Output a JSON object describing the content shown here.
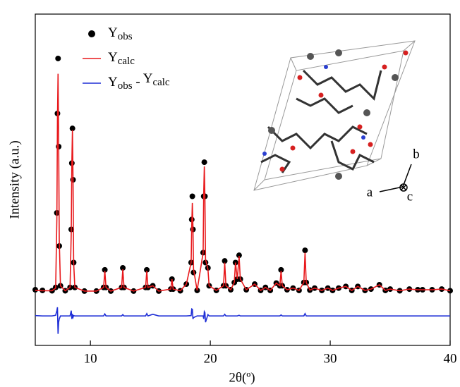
{
  "chart_data": {
    "type": "line",
    "x_label": "2θ(º)",
    "y_label": "Intensity (a.u.)",
    "xlim": [
      5.4,
      40
    ],
    "xticks": [
      10,
      20,
      30,
      40
    ],
    "ylim": [
      0,
      100
    ],
    "legend": "upper left",
    "inset_labels": [
      "a",
      "b",
      "c"
    ],
    "x": [
      5.4,
      6.0,
      6.8,
      7.1,
      7.2,
      7.25,
      7.3,
      7.35,
      7.4,
      7.5,
      7.9,
      8.3,
      8.4,
      8.45,
      8.5,
      8.55,
      8.6,
      8.7,
      9.5,
      10.5,
      11.1,
      11.2,
      11.3,
      11.7,
      12.6,
      12.7,
      12.8,
      13.6,
      14.6,
      14.7,
      14.8,
      15.2,
      15.7,
      16.7,
      16.8,
      16.9,
      17.5,
      18.0,
      18.4,
      18.45,
      18.5,
      18.55,
      18.6,
      18.9,
      19.4,
      19.45,
      19.5,
      19.55,
      19.6,
      19.8,
      19.9,
      20.5,
      21.1,
      21.2,
      21.3,
      21.7,
      22.0,
      22.1,
      22.25,
      22.4,
      22.5,
      23.0,
      23.7,
      24.2,
      24.6,
      25.0,
      25.5,
      25.8,
      25.9,
      26.0,
      26.4,
      26.9,
      27.4,
      27.8,
      27.9,
      28.0,
      28.3,
      28.7,
      29.3,
      29.8,
      30.2,
      30.7,
      31.3,
      31.8,
      32.3,
      32.9,
      33.4,
      34.1,
      34.6,
      35.0,
      35.8,
      36.6,
      37.3,
      37.7,
      38.5,
      39.3,
      40
    ],
    "series": [
      {
        "name": "Yobs",
        "color": "#000000",
        "mode": "markers",
        "values": [
          16.8,
          16.6,
          16.5,
          17.5,
          40,
          70,
          86.6,
          60,
          30,
          18,
          16.5,
          17.5,
          35,
          55,
          65.5,
          50,
          25,
          17.5,
          16.4,
          16.4,
          17.5,
          22.8,
          17.5,
          16.4,
          17.5,
          23.4,
          17.5,
          16.4,
          17.5,
          22.8,
          17.5,
          18,
          16.4,
          17,
          20,
          17,
          16.5,
          18.5,
          25,
          38,
          45,
          35,
          22,
          16.6,
          28,
          45,
          55.3,
          45,
          25,
          23.4,
          18,
          16.6,
          18,
          25.5,
          18,
          16.8,
          19,
          25,
          20,
          27.2,
          20,
          16.8,
          18.5,
          16.6,
          17.5,
          16.6,
          18.8,
          18,
          22.8,
          18,
          16.8,
          17.3,
          16.6,
          19,
          28.7,
          19,
          16.7,
          17.3,
          16.6,
          17.3,
          16.6,
          17.3,
          17.8,
          16.6,
          17.8,
          16.6,
          17,
          18.3,
          16.6,
          17,
          16.5,
          17,
          16.8,
          16.8,
          16.8,
          17,
          16.5
        ]
      },
      {
        "name": "Ycalc",
        "color": "#e8191c",
        "mode": "line",
        "values": [
          16.6,
          16.5,
          16.5,
          17.3,
          38,
          68,
          82,
          62,
          32,
          18,
          16.5,
          17.5,
          34,
          55,
          65,
          50,
          25,
          17.5,
          16.4,
          16.4,
          17.5,
          22.5,
          17.5,
          16.4,
          17.5,
          23,
          17.5,
          16.4,
          17.5,
          22.5,
          17.5,
          18,
          16.4,
          17,
          20,
          17,
          16.5,
          18.5,
          25,
          36,
          43,
          36,
          23,
          16.6,
          28,
          46,
          54,
          44,
          26,
          23,
          18,
          16.6,
          18,
          25,
          18,
          16.8,
          19,
          25,
          20,
          27,
          20,
          16.8,
          18.5,
          16.6,
          17.5,
          16.6,
          18.8,
          18,
          22.5,
          18,
          16.8,
          17.3,
          16.6,
          19,
          28,
          19,
          16.7,
          17.3,
          16.6,
          17.3,
          16.6,
          17.3,
          17.8,
          16.6,
          17.8,
          16.6,
          17,
          18.3,
          16.6,
          17,
          16.5,
          17,
          16.8,
          16.8,
          16.8,
          17,
          16.5
        ]
      },
      {
        "name": "Yobs - Ycalc",
        "color": "#1f2fd6",
        "mode": "line",
        "values": [
          9.0,
          8.9,
          8.9,
          9.1,
          10.5,
          11.5,
          3.5,
          7,
          8,
          8.9,
          8.9,
          8.9,
          10.5,
          8,
          9.5,
          8.5,
          9.0,
          8.9,
          8.9,
          8.9,
          8.9,
          9.5,
          8.9,
          8.9,
          8.9,
          9.3,
          8.9,
          8.9,
          8.9,
          9.6,
          8.9,
          9.4,
          8.9,
          8.9,
          8.9,
          8.9,
          8.9,
          8.9,
          9.0,
          11,
          10.9,
          8,
          8.4,
          8.9,
          8.9,
          8,
          10.2,
          9.9,
          7,
          9.3,
          8.9,
          8.9,
          8.9,
          9.4,
          8.9,
          8.9,
          8.9,
          8.9,
          8.9,
          9.1,
          8.9,
          8.9,
          8.9,
          8.9,
          8.9,
          8.9,
          8.9,
          8.9,
          9.2,
          8.9,
          8.9,
          8.9,
          8.9,
          8.9,
          9.6,
          8.9,
          8.9,
          8.9,
          8.9,
          8.9,
          8.9,
          8.9,
          8.9,
          8.9,
          8.9,
          8.9,
          8.9,
          8.9,
          8.9,
          8.9,
          8.9,
          8.9,
          8.9,
          8.9,
          8.9,
          8.9,
          8.9
        ]
      }
    ]
  }
}
